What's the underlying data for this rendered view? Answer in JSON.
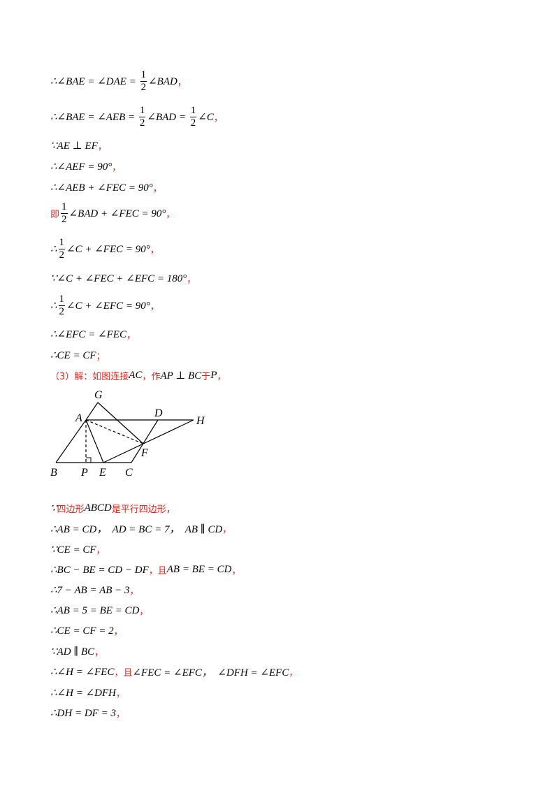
{
  "lines_before": [
    [
      {
        "text": "∴∠BAE = ∠DAE = "
      },
      {
        "numerator": "1",
        "denominator": "2"
      },
      {
        "text": "∠BAD"
      },
      {
        "text": "，",
        "color": "red"
      }
    ],
    [
      {
        "text": "∴∠BAE = ∠AEB = "
      },
      {
        "numerator": "1",
        "denominator": "2"
      },
      {
        "text": "∠BAD = "
      },
      {
        "numerator": "1",
        "denominator": "2"
      },
      {
        "text": "∠C"
      },
      {
        "text": "，",
        "color": "red"
      }
    ],
    [
      {
        "text": "∵AE ⊥ EF"
      },
      {
        "text": "，",
        "color": "red"
      }
    ],
    [
      {
        "text": "∴∠AEF = 90°"
      },
      {
        "text": "，",
        "color": "red"
      }
    ],
    [
      {
        "text": "∴∠AEB + ∠FEC = 90°"
      },
      {
        "text": "，",
        "color": "red"
      }
    ],
    [
      {
        "text": "即",
        "color": "red"
      },
      {
        "numerator": "1",
        "denominator": "2"
      },
      {
        "text": "∠BAD + ∠FEC = 90°"
      },
      {
        "text": "，",
        "color": "red"
      }
    ],
    [
      {
        "text": "∴"
      },
      {
        "numerator": "1",
        "denominator": "2"
      },
      {
        "text": "∠C + ∠FEC = 90°"
      },
      {
        "text": "，",
        "color": "red"
      }
    ],
    [
      {
        "text": "∵∠C + ∠FEC + ∠EFC = 180°"
      },
      {
        "text": "，",
        "color": "red"
      }
    ],
    [
      {
        "text": "∴"
      },
      {
        "numerator": "1",
        "denominator": "2"
      },
      {
        "text": "∠C + ∠EFC = 90°"
      },
      {
        "text": "，",
        "color": "red"
      }
    ],
    [
      {
        "text": "∴∠EFC = ∠FEC"
      },
      {
        "text": "，",
        "color": "red"
      }
    ],
    [
      {
        "text": "∴CE = CF"
      },
      {
        "text": "；",
        "color": "red"
      }
    ],
    [
      {
        "text": "（3）解：如图连接",
        "color": "red"
      },
      {
        "text": "AC"
      },
      {
        "text": "，作",
        "color": "red"
      },
      {
        "text": "AP ⊥ BC"
      },
      {
        "text": "于",
        "color": "red"
      },
      {
        "text": "P"
      },
      {
        "text": "，",
        "color": "red"
      }
    ]
  ],
  "figure": {
    "labels": [
      "G",
      "A",
      "D",
      "H",
      "B",
      "P",
      "E",
      "C",
      "F"
    ]
  },
  "lines_after": [
    [
      {
        "text": "∵"
      },
      {
        "text": "四边形",
        "color": "red"
      },
      {
        "text": "ABCD"
      },
      {
        "text": "是平行四边形，",
        "color": "red"
      }
    ],
    [
      {
        "text": "∴AB = CD，  AD = BC = 7，  AB ∥ CD"
      },
      {
        "text": "，",
        "color": "red"
      }
    ],
    [
      {
        "text": "∵CE = CF"
      },
      {
        "text": "，",
        "color": "red"
      }
    ],
    [
      {
        "text": "∴BC − BE = CD − DF"
      },
      {
        "text": "，且",
        "color": "red"
      },
      {
        "text": "AB = BE = CD"
      },
      {
        "text": "，",
        "color": "red"
      }
    ],
    [
      {
        "text": "∴7 − AB = AB − 3"
      },
      {
        "text": "，",
        "color": "red"
      }
    ],
    [
      {
        "text": "∴AB = 5 = BE = CD"
      },
      {
        "text": "，",
        "color": "red"
      }
    ],
    [
      {
        "text": "∴CE = CF = 2"
      },
      {
        "text": "，",
        "color": "red"
      }
    ],
    [
      {
        "text": "∵AD ∥ BC"
      },
      {
        "text": "，",
        "color": "red"
      }
    ],
    [
      {
        "text": "∴∠H = ∠FEC"
      },
      {
        "text": "，且",
        "color": "red"
      },
      {
        "text": "∠FEC = ∠EFC，  ∠DFH = ∠EFC"
      },
      {
        "text": "，",
        "color": "red"
      }
    ],
    [
      {
        "text": "∴∠H = ∠DFH"
      },
      {
        "text": "，",
        "color": "red"
      }
    ],
    [
      {
        "text": "∴DH = DF = 3"
      },
      {
        "text": "，",
        "color": "red"
      }
    ]
  ]
}
